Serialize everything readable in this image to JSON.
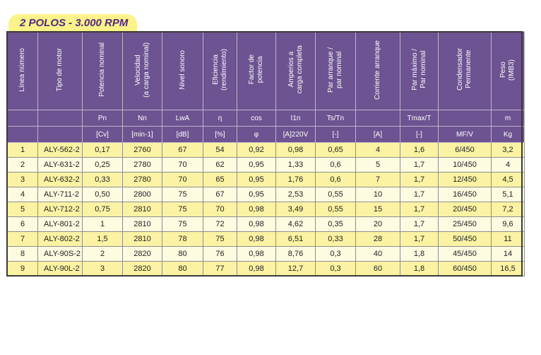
{
  "title": "2 POLOS - 3.000 RPM",
  "columns": [
    {
      "label": "Línea número",
      "symbol": "",
      "unit": ""
    },
    {
      "label": "Tipo de motor",
      "symbol": "",
      "unit": ""
    },
    {
      "label": "Potencia nominal",
      "symbol": "Pn",
      "unit": "[Cv]"
    },
    {
      "label": "Velocidad\n(a carga nominal)",
      "symbol": "Nn",
      "unit": "[min-1]"
    },
    {
      "label": "Nivel sonoro",
      "symbol": "LwA",
      "unit": "[dB]"
    },
    {
      "label": "Eficiencia\n(rendimiento)",
      "symbol": "η",
      "unit": "[%]"
    },
    {
      "label": "Factor de\npotencia",
      "symbol": "cos",
      "unit": "φ"
    },
    {
      "label": "Amperios a\ncarga completa",
      "symbol": "I1n",
      "unit": "[A]220V"
    },
    {
      "label": "Par arranque /\npar nominal",
      "symbol": "Ts/Tn",
      "unit": "[-]"
    },
    {
      "label": "Corriente arranque",
      "symbol": "",
      "unit": "[A]"
    },
    {
      "label": "Par máximo /\nPar nominal",
      "symbol": "Tmax/T",
      "unit": "[-]"
    },
    {
      "label": "Condensador\nPermanente",
      "symbol": "",
      "unit": "MF/V"
    },
    {
      "label": "Peso\n(IMB3)",
      "symbol": "m",
      "unit": "Kg"
    }
  ],
  "rows": [
    [
      "1",
      "ALY-562-2",
      "0,17",
      "2760",
      "67",
      "54",
      "0,92",
      "0,98",
      "0,65",
      "4",
      "1,6",
      "6/450",
      "3,2"
    ],
    [
      "2",
      "ALY-631-2",
      "0,25",
      "2780",
      "70",
      "62",
      "0,95",
      "1,33",
      "0,6",
      "5",
      "1,7",
      "10/450",
      "4"
    ],
    [
      "3",
      "ALY-632-2",
      "0,33",
      "2780",
      "70",
      "65",
      "0,95",
      "1,76",
      "0,6",
      "7",
      "1,7",
      "12/450",
      "4,5"
    ],
    [
      "4",
      "ALY-711-2",
      "0,50",
      "2800",
      "75",
      "67",
      "0,95",
      "2,53",
      "0,55",
      "10",
      "1,7",
      "16/450",
      "5,1"
    ],
    [
      "5",
      "ALY-712-2",
      "0,75",
      "2810",
      "75",
      "70",
      "0,98",
      "3,49",
      "0,55",
      "15",
      "1,7",
      "20/450",
      "7,2"
    ],
    [
      "6",
      "ALY-801-2",
      "1",
      "2810",
      "75",
      "72",
      "0,98",
      "4,62",
      "0,35",
      "20",
      "1,7",
      "25/450",
      "9,6"
    ],
    [
      "7",
      "ALY-802-2",
      "1,5",
      "2810",
      "78",
      "75",
      "0,98",
      "6,51",
      "0,33",
      "28",
      "1,7",
      "50/450",
      "11"
    ],
    [
      "8",
      "ALY-90S-2",
      "2",
      "2820",
      "80",
      "76",
      "0,98",
      "8,76",
      "0,3",
      "40",
      "1,8",
      "45/450",
      "14"
    ],
    [
      "9",
      "ALY-90L-2",
      "3",
      "2820",
      "80",
      "77",
      "0,98",
      "12,7",
      "0,3",
      "60",
      "1,8",
      "60/450",
      "16,5"
    ]
  ]
}
